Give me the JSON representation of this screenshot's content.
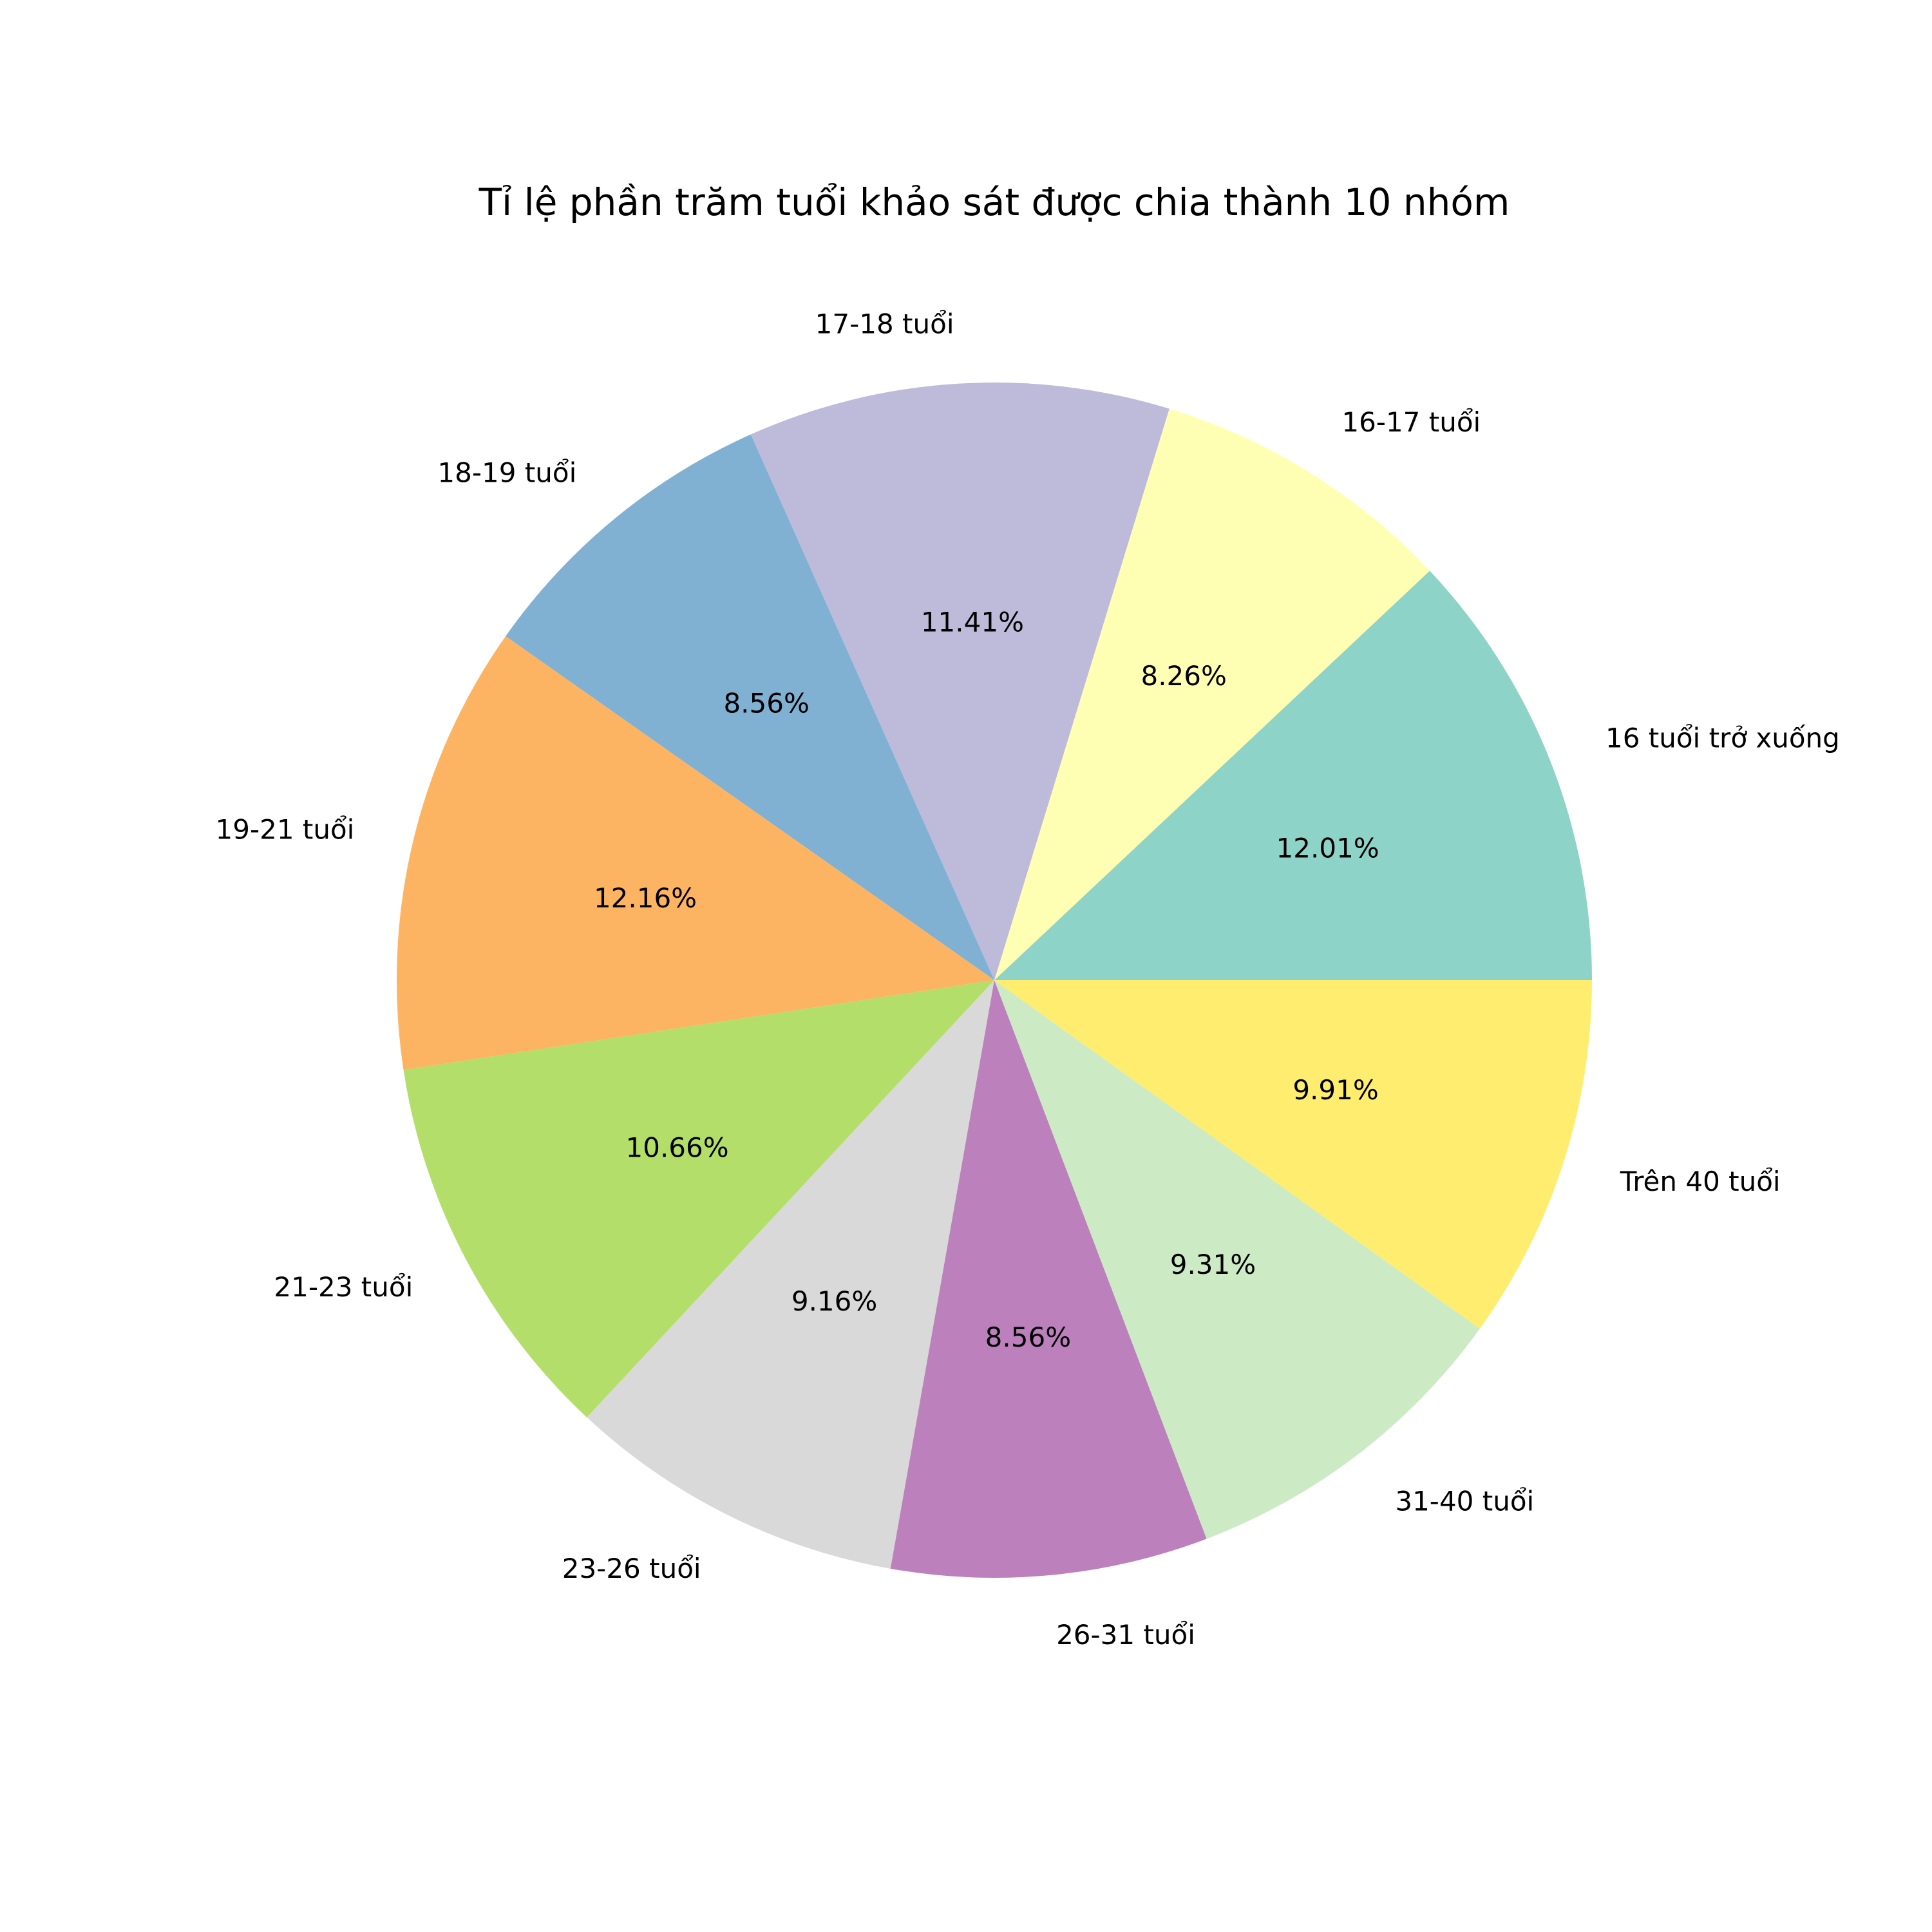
{
  "chart_data": {
    "type": "pie",
    "title": "Tỉ lệ phần trăm tuổi khảo sát được chia thành 10 nhóm",
    "start_angle_deg": 0,
    "direction": "counterclockwise",
    "slices": [
      {
        "label": "16 tuổi trở xuống",
        "value": 12.01,
        "pct_text": "12.01%",
        "color": "#8dd3c7"
      },
      {
        "label": "16-17 tuổi",
        "value": 8.26,
        "pct_text": "8.26%",
        "color": "#ffffb3"
      },
      {
        "label": "17-18 tuổi",
        "value": 11.41,
        "pct_text": "11.41%",
        "color": "#bebada"
      },
      {
        "label": "18-19 tuổi",
        "value": 8.56,
        "pct_text": "8.56%",
        "color": "#80b1d3"
      },
      {
        "label": "19-21 tuổi",
        "value": 12.16,
        "pct_text": "12.16%",
        "color": "#fdb462"
      },
      {
        "label": "21-23 tuổi",
        "value": 10.66,
        "pct_text": "10.66%",
        "color": "#b3de69"
      },
      {
        "label": "23-26 tuổi",
        "value": 9.16,
        "pct_text": "9.16%",
        "color": "#d9d9d9"
      },
      {
        "label": "26-31 tuổi",
        "value": 8.56,
        "pct_text": "8.56%",
        "color": "#bc80bd"
      },
      {
        "label": "31-40 tuổi",
        "value": 9.31,
        "pct_text": "9.31%",
        "color": "#ccebc5"
      },
      {
        "label": "Trên 40 tuổi",
        "value": 9.91,
        "pct_text": "9.91%",
        "color": "#ffed6f"
      }
    ]
  }
}
